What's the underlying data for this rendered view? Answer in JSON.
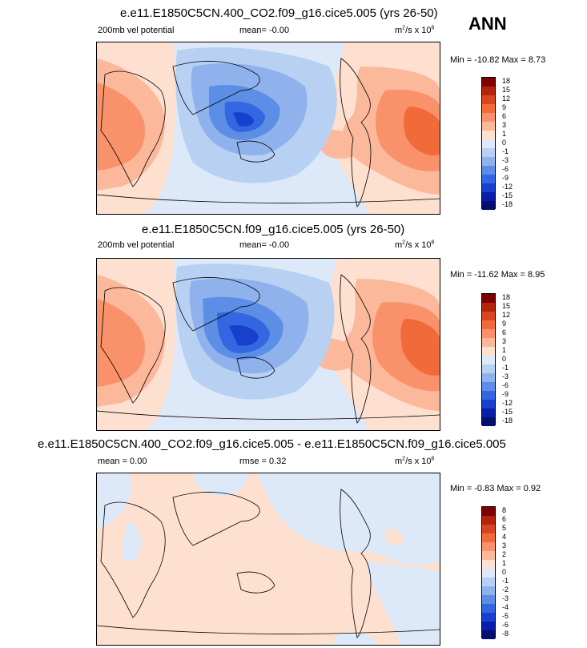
{
  "season": "ANN",
  "panels": [
    {
      "title": "e.e11.E1850C5CN.400_CO2.f09_g16.cice5.005 (yrs 26-50)",
      "left_text": "200mb vel potential",
      "mid_text": "mean=  -0.00",
      "units_base": "m",
      "units_sup": "2",
      "units_mid": "/s x 10",
      "units_exp": "6",
      "min_label": "Min = -10.82 Max =   8.73",
      "levels": [
        "18",
        "15",
        "12",
        "9",
        "6",
        "3",
        "1",
        "0",
        "-1",
        "-3",
        "-6",
        "-9",
        "-12",
        "-15",
        "-18"
      ]
    },
    {
      "title": "e.e11.E1850C5CN.f09_g16.cice5.005 (yrs 26-50)",
      "left_text": "200mb vel potential",
      "mid_text": "mean=  -0.00",
      "units_base": "m",
      "units_sup": "2",
      "units_mid": "/s x 10",
      "units_exp": "6",
      "min_label": "Min = -11.62 Max =   8.95",
      "levels": [
        "18",
        "15",
        "12",
        "9",
        "6",
        "3",
        "1",
        "0",
        "-1",
        "-3",
        "-6",
        "-9",
        "-12",
        "-15",
        "-18"
      ]
    },
    {
      "title": "e.e11.E1850C5CN.400_CO2.f09_g16.cice5.005 - e.e11.E1850C5CN.f09_g16.cice5.005",
      "left_text": "mean =  0.00",
      "mid_text": "rmse =  0.32",
      "units_base": "m",
      "units_sup": "2",
      "units_mid": "/s x 10",
      "units_exp": "6",
      "min_label": "Min = -0.83 Max =  0.92",
      "levels": [
        "8",
        "6",
        "5",
        "4",
        "3",
        "2",
        "1",
        "0",
        "-1",
        "-2",
        "-3",
        "-4",
        "-5",
        "-6",
        "-8"
      ]
    }
  ],
  "colors": {
    "scale": [
      "#7f0000",
      "#b2240c",
      "#d84521",
      "#f06a3a",
      "#f9916a",
      "#fcb89b",
      "#fde0cf",
      "#dde9f8",
      "#b8d1f3",
      "#8fb2ec",
      "#5d8ee6",
      "#3366e0",
      "#1740cc",
      "#0a1da6",
      "#050e6e"
    ]
  }
}
